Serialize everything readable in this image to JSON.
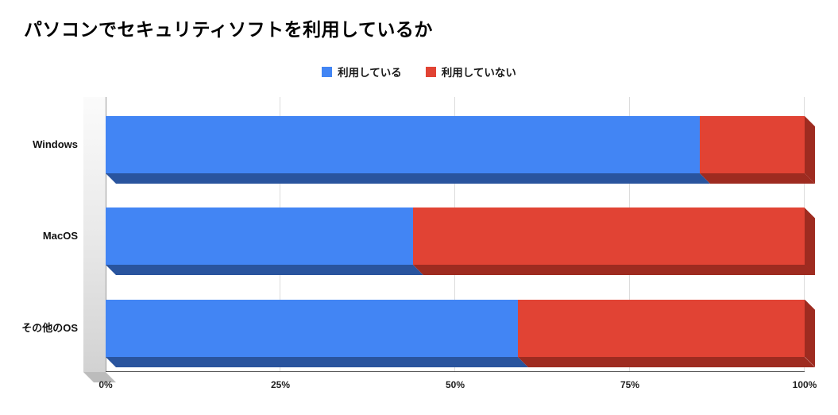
{
  "title": "パソコンでセキュリティソフトを利用しているか",
  "legend": {
    "items": [
      {
        "label": "利用している",
        "color": "#4285f4"
      },
      {
        "label": "利用していない",
        "color": "#e14334"
      }
    ]
  },
  "chart_data": {
    "type": "bar",
    "orientation": "horizontal",
    "stacked": true,
    "effect_3d": true,
    "title": "パソコンでセキュリティソフトを利用しているか",
    "categories": [
      "Windows",
      "MacOS",
      "その他のOS"
    ],
    "series": [
      {
        "name": "利用している",
        "color": "#4285f4",
        "dark_color": "#29549e",
        "values": [
          85,
          44,
          59
        ]
      },
      {
        "name": "利用していない",
        "color": "#e14334",
        "dark_color": "#9e2b20",
        "values": [
          15,
          56,
          41
        ]
      }
    ],
    "unit": "%",
    "xlim": [
      0,
      100
    ],
    "x_ticks": [
      {
        "value": 0,
        "label": "0%"
      },
      {
        "value": 25,
        "label": "25%"
      },
      {
        "value": 50,
        "label": "50%"
      },
      {
        "value": 75,
        "label": "75%"
      },
      {
        "value": 100,
        "label": "100%"
      }
    ],
    "grid": true,
    "legend_position": "top",
    "wall_color": "#e0e0e0"
  }
}
